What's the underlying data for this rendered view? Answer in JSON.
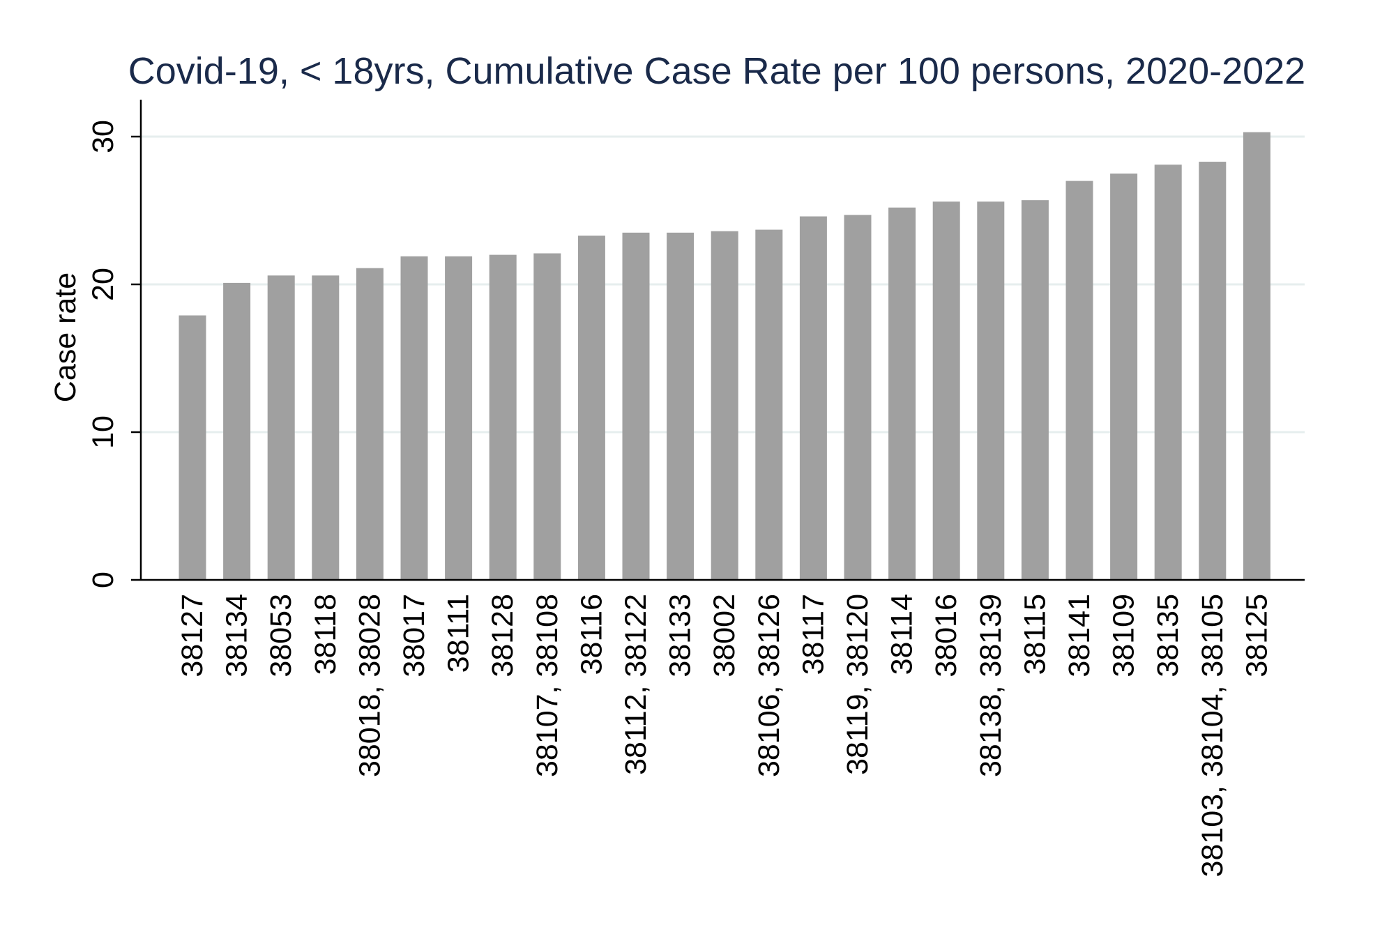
{
  "chart_data": {
    "type": "bar",
    "title": "Covid-19, < 18yrs, Cumulative Case Rate per 100 persons, 2020-2022",
    "xlabel": "",
    "ylabel": "Case rate",
    "ylim": [
      0,
      32.5
    ],
    "yticks": [
      0,
      10,
      20,
      30
    ],
    "grid": true,
    "legend": "none",
    "bar_color": "#a0a0a0",
    "categories": [
      "38127",
      "38134",
      "38053",
      "38118",
      "38018, 38028",
      "38017",
      "38111",
      "38128",
      "38107, 38108",
      "38116",
      "38112, 38122",
      "38133",
      "38002",
      "38106, 38126",
      "38117",
      "38119, 38120",
      "38114",
      "38016",
      "38138, 38139",
      "38115",
      "38141",
      "38109",
      "38135",
      "38103, 38104, 38105",
      "38125"
    ],
    "values": [
      17.9,
      20.1,
      20.6,
      20.6,
      21.1,
      21.9,
      21.9,
      22.0,
      22.1,
      23.3,
      23.5,
      23.5,
      23.6,
      23.7,
      24.6,
      24.7,
      25.2,
      25.6,
      25.6,
      25.7,
      27.0,
      27.5,
      28.1,
      28.3,
      30.3
    ]
  }
}
